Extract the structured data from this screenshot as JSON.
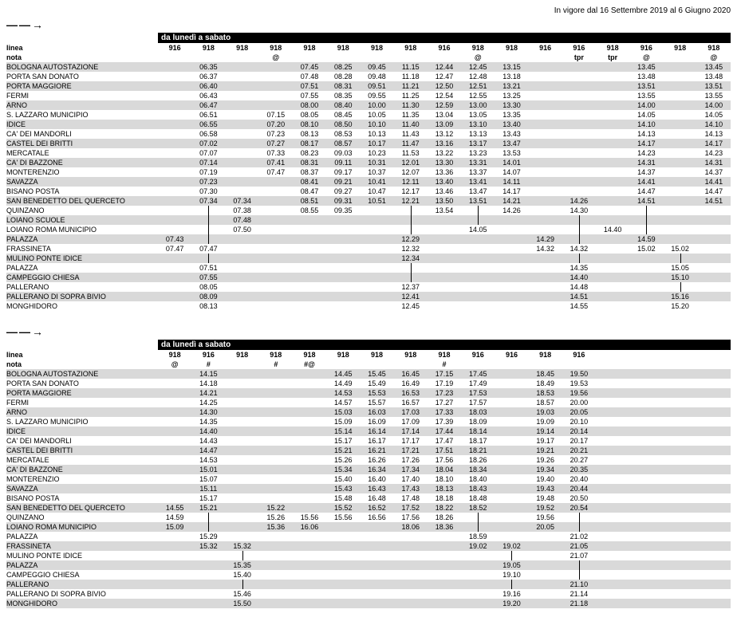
{
  "validity": "In vigore dal 16 Settembre 2019 al 6 Giugno 2020",
  "arrow": "——→",
  "period_header": "da lunedì a sabato",
  "linea_label": "linea",
  "nota_label": "nota",
  "sections": [
    {
      "lines": [
        "916",
        "918",
        "918",
        "918",
        "918",
        "918",
        "918",
        "918",
        "916",
        "918",
        "918",
        "916",
        "916",
        "918",
        "916",
        "918",
        "918"
      ],
      "notes": [
        "",
        "",
        "",
        "@",
        "",
        "",
        "",
        "",
        "",
        "@",
        "",
        "",
        "tpr",
        "tpr",
        "@",
        "",
        "@"
      ],
      "stops": [
        "BOLOGNA AUTOSTAZIONE",
        "PORTA SAN DONATO",
        "PORTA MAGGIORE",
        "FERMI",
        "ARNO",
        "S. LAZZARO MUNICIPIO",
        "IDICE",
        "CA' DEI MANDORLI",
        "CASTEL DEI BRITTI",
        "MERCATALE",
        "CA' DI BAZZONE",
        "MONTERENZIO",
        "SAVAZZA",
        "BISANO POSTA",
        "SAN BENEDETTO DEL QUERCETO",
        "QUINZANO",
        "LOIANO SCUOLE",
        "LOIANO ROMA MUNICIPIO",
        "PALAZZA",
        "FRASSINETA",
        "MULINO PONTE IDICE",
        "PALAZZA",
        "CAMPEGGIO CHIESA",
        "PALLERANO",
        "PALLERANO DI SOPRA BIVIO",
        "MONGHIDORO"
      ],
      "rows": [
        [
          "",
          "06.35",
          "",
          "",
          "07.45",
          "08.25",
          "09.45",
          "11.15",
          "12.44",
          "12.45",
          "13.15",
          "",
          "",
          "",
          "13.45",
          "",
          "13.45"
        ],
        [
          "",
          "06.37",
          "",
          "",
          "07.48",
          "08.28",
          "09.48",
          "11.18",
          "12.47",
          "12.48",
          "13.18",
          "",
          "",
          "",
          "13.48",
          "",
          "13.48"
        ],
        [
          "",
          "06.40",
          "",
          "",
          "07.51",
          "08.31",
          "09.51",
          "11.21",
          "12.50",
          "12.51",
          "13.21",
          "",
          "",
          "",
          "13.51",
          "",
          "13.51"
        ],
        [
          "",
          "06.43",
          "",
          "",
          "07.55",
          "08.35",
          "09.55",
          "11.25",
          "12.54",
          "12.55",
          "13.25",
          "",
          "",
          "",
          "13.55",
          "",
          "13.55"
        ],
        [
          "",
          "06.47",
          "",
          "",
          "08.00",
          "08.40",
          "10.00",
          "11.30",
          "12.59",
          "13.00",
          "13.30",
          "",
          "",
          "",
          "14.00",
          "",
          "14.00"
        ],
        [
          "",
          "06.51",
          "",
          "07.15",
          "08.05",
          "08.45",
          "10.05",
          "11.35",
          "13.04",
          "13.05",
          "13.35",
          "",
          "",
          "",
          "14.05",
          "",
          "14.05"
        ],
        [
          "",
          "06.55",
          "",
          "07.20",
          "08.10",
          "08.50",
          "10.10",
          "11.40",
          "13.09",
          "13.10",
          "13.40",
          "",
          "",
          "",
          "14.10",
          "",
          "14.10"
        ],
        [
          "",
          "06.58",
          "",
          "07.23",
          "08.13",
          "08.53",
          "10.13",
          "11.43",
          "13.12",
          "13.13",
          "13.43",
          "",
          "",
          "",
          "14.13",
          "",
          "14.13"
        ],
        [
          "",
          "07.02",
          "",
          "07.27",
          "08.17",
          "08.57",
          "10.17",
          "11.47",
          "13.16",
          "13.17",
          "13.47",
          "",
          "",
          "",
          "14.17",
          "",
          "14.17"
        ],
        [
          "",
          "07.07",
          "",
          "07.33",
          "08.23",
          "09.03",
          "10.23",
          "11.53",
          "13.22",
          "13.23",
          "13.53",
          "",
          "",
          "",
          "14.23",
          "",
          "14.23"
        ],
        [
          "",
          "07.14",
          "",
          "07.41",
          "08.31",
          "09.11",
          "10.31",
          "12.01",
          "13.30",
          "13.31",
          "14.01",
          "",
          "",
          "",
          "14.31",
          "",
          "14.31"
        ],
        [
          "",
          "07.19",
          "",
          "07.47",
          "08.37",
          "09.17",
          "10.37",
          "12.07",
          "13.36",
          "13.37",
          "14.07",
          "",
          "",
          "",
          "14.37",
          "",
          "14.37"
        ],
        [
          "",
          "07.23",
          "",
          "",
          "08.41",
          "09.21",
          "10.41",
          "12.11",
          "13.40",
          "13.41",
          "14.11",
          "",
          "",
          "",
          "14.41",
          "",
          "14.41"
        ],
        [
          "",
          "07.30",
          "",
          "",
          "08.47",
          "09.27",
          "10.47",
          "12.17",
          "13.46",
          "13.47",
          "14.17",
          "",
          "",
          "",
          "14.47",
          "",
          "14.47"
        ],
        [
          "",
          "07.34",
          "07.34",
          "",
          "08.51",
          "09.31",
          "10.51",
          "12.21",
          "13.50",
          "13.51",
          "14.21",
          "",
          "14.26",
          "",
          "14.51",
          "",
          "14.51"
        ],
        [
          "",
          "|",
          "07.38",
          "",
          "08.55",
          "09.35",
          "",
          "|",
          "13.54",
          "|",
          "14.26",
          "",
          "14.30",
          "",
          "|",
          "",
          ""
        ],
        [
          "",
          "|",
          "07.48",
          "",
          "",
          "",
          "",
          "|",
          "",
          "|",
          "",
          "",
          "|",
          "",
          "|",
          "",
          ""
        ],
        [
          "",
          "|",
          "07.50",
          "",
          "",
          "",
          "",
          "|",
          "",
          "14.05",
          "",
          "",
          "|",
          "14.40",
          "|",
          "",
          ""
        ],
        [
          "07.43",
          "|",
          "",
          "",
          "",
          "",
          "",
          "12.29",
          "",
          "",
          "",
          "14.29",
          "|",
          "",
          "14.59",
          "",
          ""
        ],
        [
          "07.47",
          "07.47",
          "",
          "",
          "",
          "",
          "",
          "12.32",
          "",
          "",
          "",
          "14.32",
          "14.32",
          "",
          "15.02",
          "15.02",
          ""
        ],
        [
          "",
          "|",
          "",
          "",
          "",
          "",
          "",
          "12.34",
          "",
          "",
          "",
          "",
          "|",
          "",
          "",
          "|",
          ""
        ],
        [
          "",
          "07.51",
          "",
          "",
          "",
          "",
          "",
          "|",
          "",
          "",
          "",
          "",
          "14.35",
          "",
          "",
          "15.05",
          ""
        ],
        [
          "",
          "07.55",
          "",
          "",
          "",
          "",
          "",
          "|",
          "",
          "",
          "",
          "",
          "14.40",
          "",
          "",
          "15.10",
          ""
        ],
        [
          "",
          "08.05",
          "",
          "",
          "",
          "",
          "",
          "12.37",
          "",
          "",
          "",
          "",
          "14.48",
          "",
          "",
          "|",
          ""
        ],
        [
          "",
          "08.09",
          "",
          "",
          "",
          "",
          "",
          "12.41",
          "",
          "",
          "",
          "",
          "14.51",
          "",
          "",
          "15.16",
          ""
        ],
        [
          "",
          "08.13",
          "",
          "",
          "",
          "",
          "",
          "12.45",
          "",
          "",
          "",
          "",
          "14.55",
          "",
          "",
          "15.20",
          ""
        ]
      ]
    },
    {
      "lines": [
        "918",
        "916",
        "918",
        "918",
        "918",
        "918",
        "918",
        "918",
        "918",
        "916",
        "916",
        "918",
        "916",
        "",
        "",
        "",
        ""
      ],
      "notes": [
        "@",
        "#",
        "",
        "#",
        "#@",
        "",
        "",
        "",
        "#",
        "",
        "",
        "",
        "",
        "",
        "",
        "",
        ""
      ],
      "stops": [
        "BOLOGNA AUTOSTAZIONE",
        "PORTA SAN DONATO",
        "PORTA MAGGIORE",
        "FERMI",
        "ARNO",
        "S. LAZZARO MUNICIPIO",
        "IDICE",
        "CA' DEI MANDORLI",
        "CASTEL DEI BRITTI",
        "MERCATALE",
        "CA' DI BAZZONE",
        "MONTERENZIO",
        "SAVAZZA",
        "BISANO POSTA",
        "SAN BENEDETTO DEL QUERCETO",
        "QUINZANO",
        "LOIANO ROMA MUNICIPIO",
        "PALAZZA",
        "FRASSINETA",
        "MULINO PONTE IDICE",
        "PALAZZA",
        "CAMPEGGIO CHIESA",
        "PALLERANO",
        "PALLERANO DI SOPRA BIVIO",
        "MONGHIDORO"
      ],
      "rows": [
        [
          "",
          "14.15",
          "",
          "",
          "",
          "14.45",
          "15.45",
          "16.45",
          "17.15",
          "17.45",
          "",
          "18.45",
          "19.50",
          "",
          "",
          "",
          ""
        ],
        [
          "",
          "14.18",
          "",
          "",
          "",
          "14.49",
          "15.49",
          "16.49",
          "17.19",
          "17.49",
          "",
          "18.49",
          "19.53",
          "",
          "",
          "",
          ""
        ],
        [
          "",
          "14.21",
          "",
          "",
          "",
          "14.53",
          "15.53",
          "16.53",
          "17.23",
          "17.53",
          "",
          "18.53",
          "19.56",
          "",
          "",
          "",
          ""
        ],
        [
          "",
          "14.25",
          "",
          "",
          "",
          "14.57",
          "15.57",
          "16.57",
          "17.27",
          "17.57",
          "",
          "18.57",
          "20.00",
          "",
          "",
          "",
          ""
        ],
        [
          "",
          "14.30",
          "",
          "",
          "",
          "15.03",
          "16.03",
          "17.03",
          "17.33",
          "18.03",
          "",
          "19.03",
          "20.05",
          "",
          "",
          "",
          ""
        ],
        [
          "",
          "14.35",
          "",
          "",
          "",
          "15.09",
          "16.09",
          "17.09",
          "17.39",
          "18.09",
          "",
          "19.09",
          "20.10",
          "",
          "",
          "",
          ""
        ],
        [
          "",
          "14.40",
          "",
          "",
          "",
          "15.14",
          "16.14",
          "17.14",
          "17.44",
          "18.14",
          "",
          "19.14",
          "20.14",
          "",
          "",
          "",
          ""
        ],
        [
          "",
          "14.43",
          "",
          "",
          "",
          "15.17",
          "16.17",
          "17.17",
          "17.47",
          "18.17",
          "",
          "19.17",
          "20.17",
          "",
          "",
          "",
          ""
        ],
        [
          "",
          "14.47",
          "",
          "",
          "",
          "15.21",
          "16.21",
          "17.21",
          "17.51",
          "18.21",
          "",
          "19.21",
          "20.21",
          "",
          "",
          "",
          ""
        ],
        [
          "",
          "14.53",
          "",
          "",
          "",
          "15.26",
          "16.26",
          "17.26",
          "17.56",
          "18.26",
          "",
          "19.26",
          "20.27",
          "",
          "",
          "",
          ""
        ],
        [
          "",
          "15.01",
          "",
          "",
          "",
          "15.34",
          "16.34",
          "17.34",
          "18.04",
          "18.34",
          "",
          "19.34",
          "20.35",
          "",
          "",
          "",
          ""
        ],
        [
          "",
          "15.07",
          "",
          "",
          "",
          "15.40",
          "16.40",
          "17.40",
          "18.10",
          "18.40",
          "",
          "19.40",
          "20.40",
          "",
          "",
          "",
          ""
        ],
        [
          "",
          "15.11",
          "",
          "",
          "",
          "15.43",
          "16.43",
          "17.43",
          "18.13",
          "18.43",
          "",
          "19.43",
          "20.44",
          "",
          "",
          "",
          ""
        ],
        [
          "",
          "15.17",
          "",
          "",
          "",
          "15.48",
          "16.48",
          "17.48",
          "18.18",
          "18.48",
          "",
          "19.48",
          "20.50",
          "",
          "",
          "",
          ""
        ],
        [
          "14.55",
          "15.21",
          "",
          "15.22",
          "",
          "15.52",
          "16.52",
          "17.52",
          "18.22",
          "18.52",
          "",
          "19.52",
          "20.54",
          "",
          "",
          "",
          ""
        ],
        [
          "14.59",
          "|",
          "",
          "15.26",
          "15.56",
          "15.56",
          "16.56",
          "17.56",
          "18.26",
          "|",
          "",
          "19.56",
          "|",
          "",
          "",
          "",
          ""
        ],
        [
          "15.09",
          "|",
          "",
          "15.36",
          "16.06",
          "",
          "",
          "18.06",
          "18.36",
          "|",
          "",
          "20.05",
          "|",
          "",
          "",
          "",
          ""
        ],
        [
          "",
          "15.29",
          "",
          "",
          "",
          "",
          "",
          "",
          "",
          "18.59",
          "",
          "",
          "21.02",
          "",
          "",
          "",
          ""
        ],
        [
          "",
          "15.32",
          "15.32",
          "",
          "",
          "",
          "",
          "",
          "",
          "19.02",
          "19.02",
          "",
          "21.05",
          "",
          "",
          "",
          ""
        ],
        [
          "",
          "",
          "|",
          "",
          "",
          "",
          "",
          "",
          "",
          "",
          "|",
          "",
          "21.07",
          "",
          "",
          "",
          ""
        ],
        [
          "",
          "",
          "15.35",
          "",
          "",
          "",
          "",
          "",
          "",
          "",
          "19.05",
          "",
          "|",
          "",
          "",
          "",
          ""
        ],
        [
          "",
          "",
          "15.40",
          "",
          "",
          "",
          "",
          "",
          "",
          "",
          "19.10",
          "",
          "|",
          "",
          "",
          "",
          ""
        ],
        [
          "",
          "",
          "|",
          "",
          "",
          "",
          "",
          "",
          "",
          "",
          "|",
          "",
          "21.10",
          "",
          "",
          "",
          ""
        ],
        [
          "",
          "",
          "15.46",
          "",
          "",
          "",
          "",
          "",
          "",
          "",
          "19.16",
          "",
          "21.14",
          "",
          "",
          "",
          ""
        ],
        [
          "",
          "",
          "15.50",
          "",
          "",
          "",
          "",
          "",
          "",
          "",
          "19.20",
          "",
          "21.18",
          "",
          "",
          "",
          ""
        ]
      ]
    }
  ]
}
